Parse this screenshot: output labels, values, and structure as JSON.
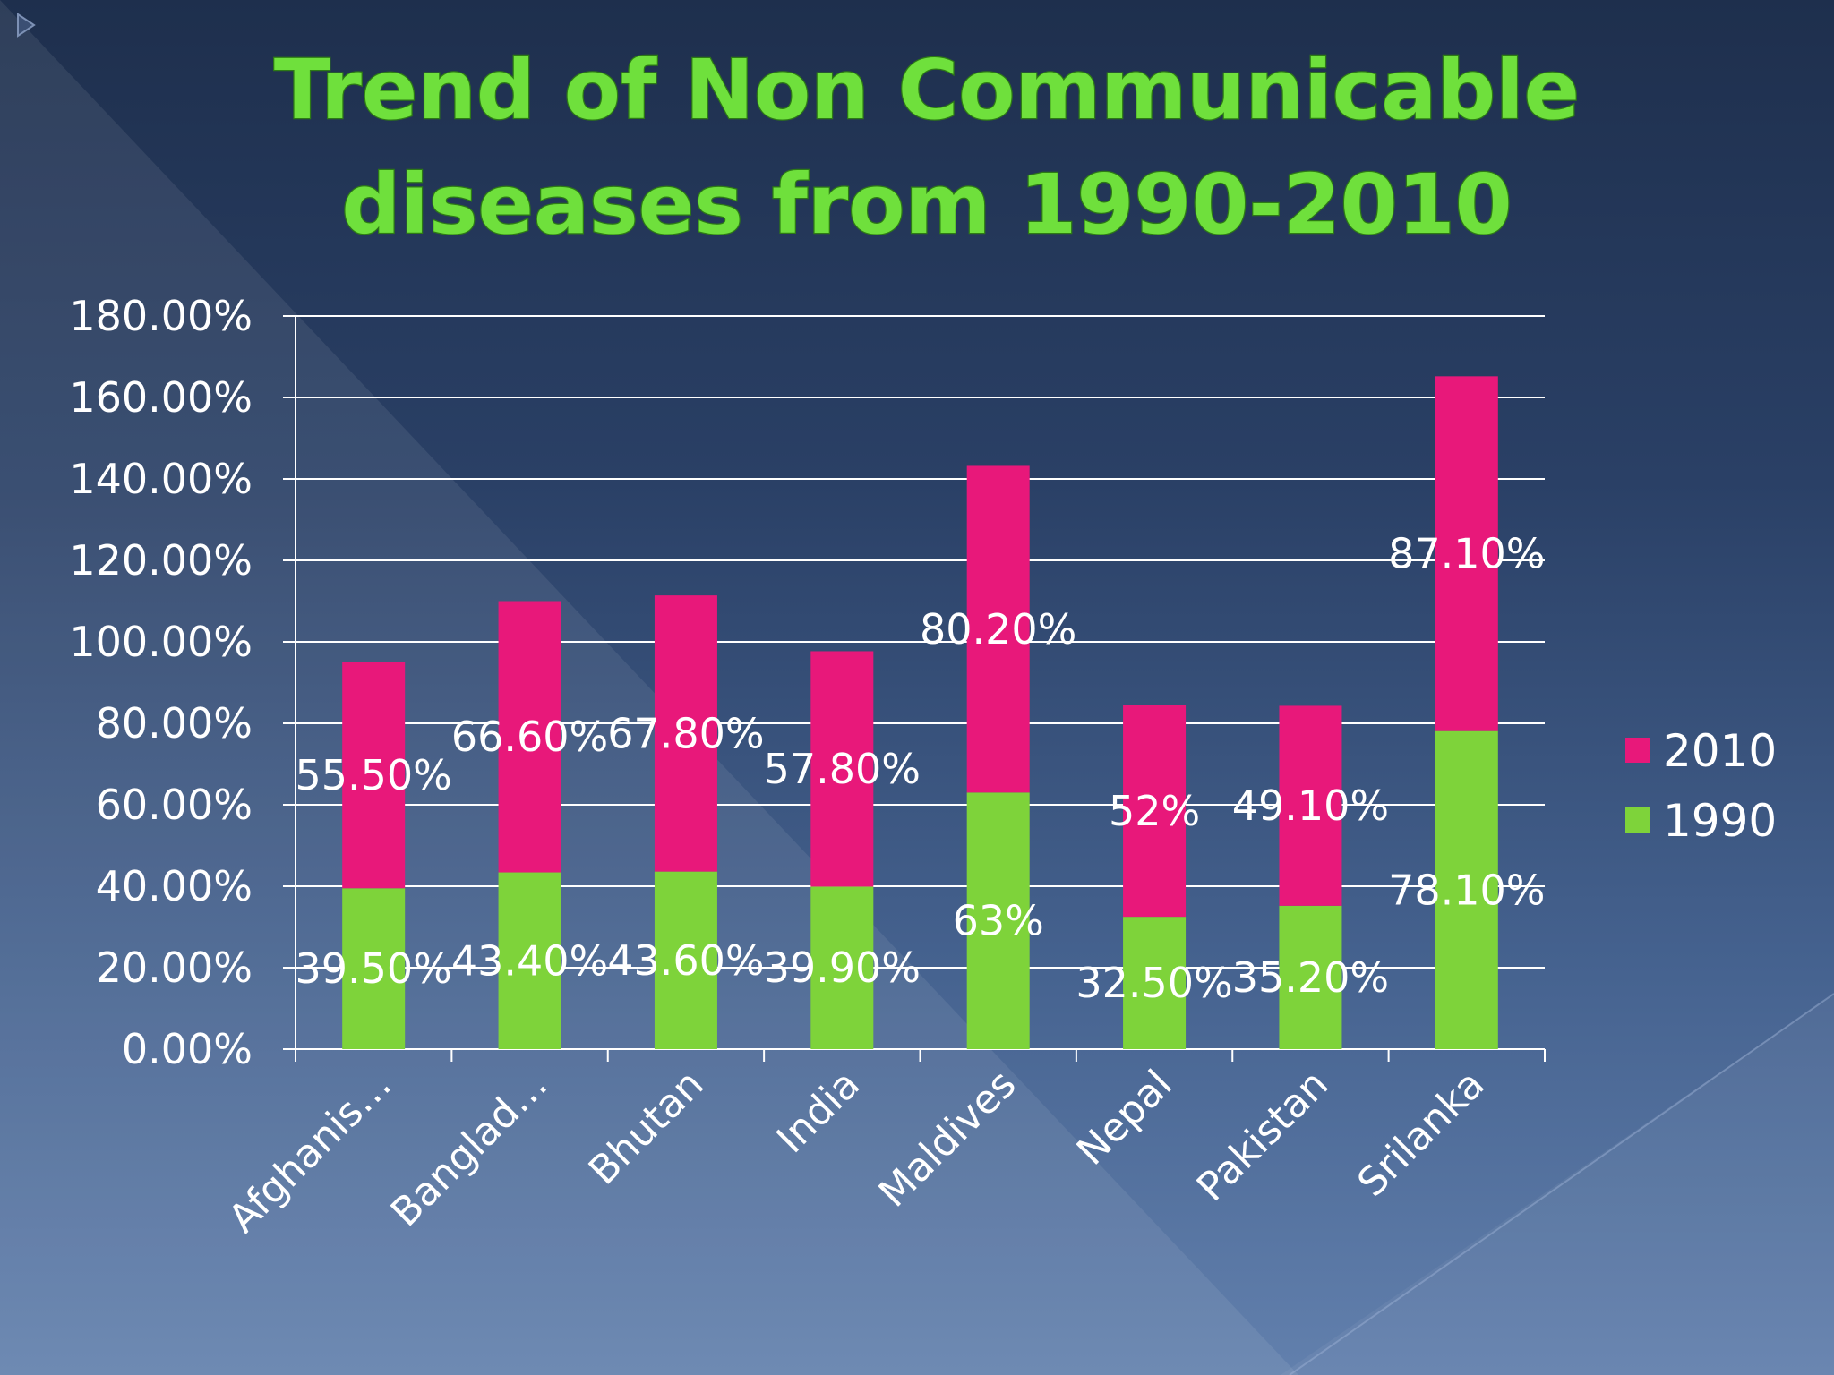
{
  "slide": {
    "bullet_icon": "triangle-arrow-icon"
  },
  "chart_data": {
    "type": "bar",
    "stacked": true,
    "title": "Trend of Non Communicable diseases from 1990-2010",
    "title_lines": [
      "Trend of Non Communicable",
      "diseases from 1990-2010"
    ],
    "categories": [
      "Afghanis…",
      "Banglad…",
      "Bhutan",
      "India",
      "Maldives",
      "Nepal",
      "Pakistan",
      "Srilanka"
    ],
    "series": [
      {
        "name": "1990",
        "color": "#7ed33a",
        "values": [
          39.5,
          43.4,
          43.6,
          39.9,
          63,
          32.5,
          35.2,
          78.1
        ],
        "labels": [
          "39.50%",
          "43.40%",
          "43.60%",
          "39.90%",
          "63%",
          "32.50%",
          "35.20%",
          "78.10%"
        ]
      },
      {
        "name": "2010",
        "color": "#e8187a",
        "values": [
          55.5,
          66.6,
          67.8,
          57.8,
          80.2,
          52,
          49.1,
          87.1
        ],
        "labels": [
          "55.50%",
          "66.60%",
          "67.80%",
          "57.80%",
          "80.20%",
          "52%",
          "49.10%",
          "87.10%"
        ]
      }
    ],
    "ylim": [
      0,
      180
    ],
    "yticks": [
      0,
      20,
      40,
      60,
      80,
      100,
      120,
      140,
      160,
      180
    ],
    "ytick_labels": [
      "0.00%",
      "20.00%",
      "40.00%",
      "60.00%",
      "80.00%",
      "100.00%",
      "120.00%",
      "140.00%",
      "160.00%",
      "180.00%"
    ],
    "xlabel": "",
    "ylabel": "",
    "grid": true,
    "legend": {
      "position": "right",
      "entries": [
        "2010",
        "1990"
      ]
    }
  }
}
